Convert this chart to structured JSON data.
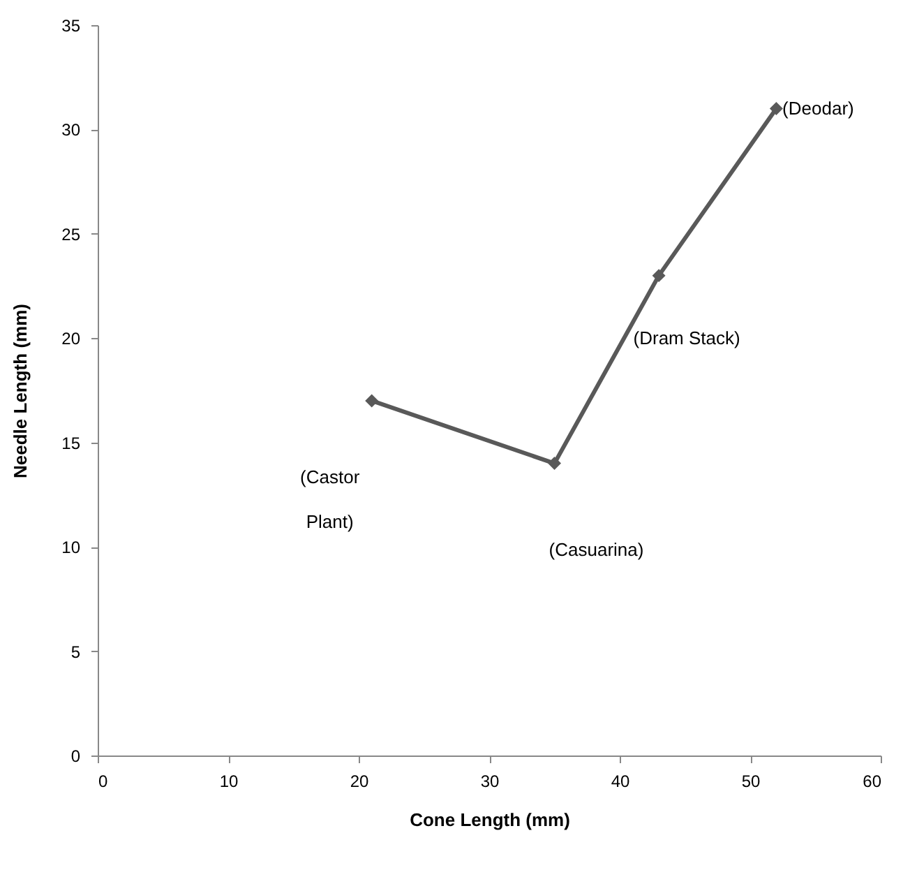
{
  "chart_data": {
    "type": "line",
    "xlabel": "Cone Length (mm)",
    "ylabel": "Needle Length (mm)",
    "x": [
      21,
      35,
      43,
      52
    ],
    "series": [
      {
        "color": "#595959",
        "values": [
          17,
          14,
          23,
          31
        ]
      }
    ],
    "xlim": [
      0,
      60
    ],
    "xticks": [
      0,
      10,
      20,
      30,
      40,
      50,
      60
    ],
    "ylim": [
      0,
      35
    ],
    "yticks": [
      0,
      5,
      10,
      15,
      20,
      25,
      30,
      35
    ],
    "marker": "diamond",
    "line_style": "solid",
    "grid": false,
    "annotations": [
      "(Castor Plant)",
      "(Casuarina)",
      "(Dram Stack)",
      "(Deodar)"
    ]
  }
}
